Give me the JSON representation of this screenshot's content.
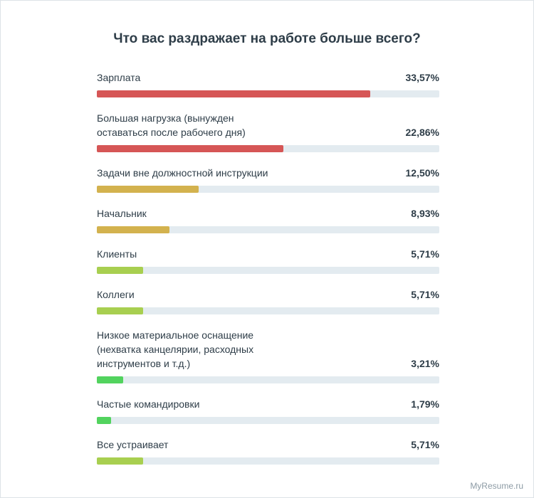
{
  "chart_data": {
    "type": "bar",
    "orientation": "horizontal",
    "title": "Что вас раздражает на работе больше всего?",
    "categories": [
      "Зарплата",
      "Большая нагрузка (вынужден оставаться после рабочего дня)",
      "Задачи вне должностной инструкции",
      "Начальник",
      "Клиенты",
      "Коллеги",
      "Низкое материальное оснащение (нехватка канцелярии, расходных инструментов и т.д.)",
      "Частые командировки",
      "Все устраивает"
    ],
    "values": [
      33.57,
      22.86,
      12.5,
      8.93,
      5.71,
      5.71,
      3.21,
      1.79,
      5.71
    ],
    "value_labels": [
      "33,57%",
      "22,86%",
      "12,50%",
      "8,93%",
      "5,71%",
      "5,71%",
      "3,21%",
      "1,79%",
      "5,71%"
    ],
    "colors": [
      "#d65656",
      "#d65656",
      "#d3b24e",
      "#d3b24e",
      "#a8cf50",
      "#a8cf50",
      "#52d35e",
      "#52d35e",
      "#a8cf50"
    ],
    "xlim": [
      0,
      42
    ],
    "source": "MyResume.ru"
  }
}
